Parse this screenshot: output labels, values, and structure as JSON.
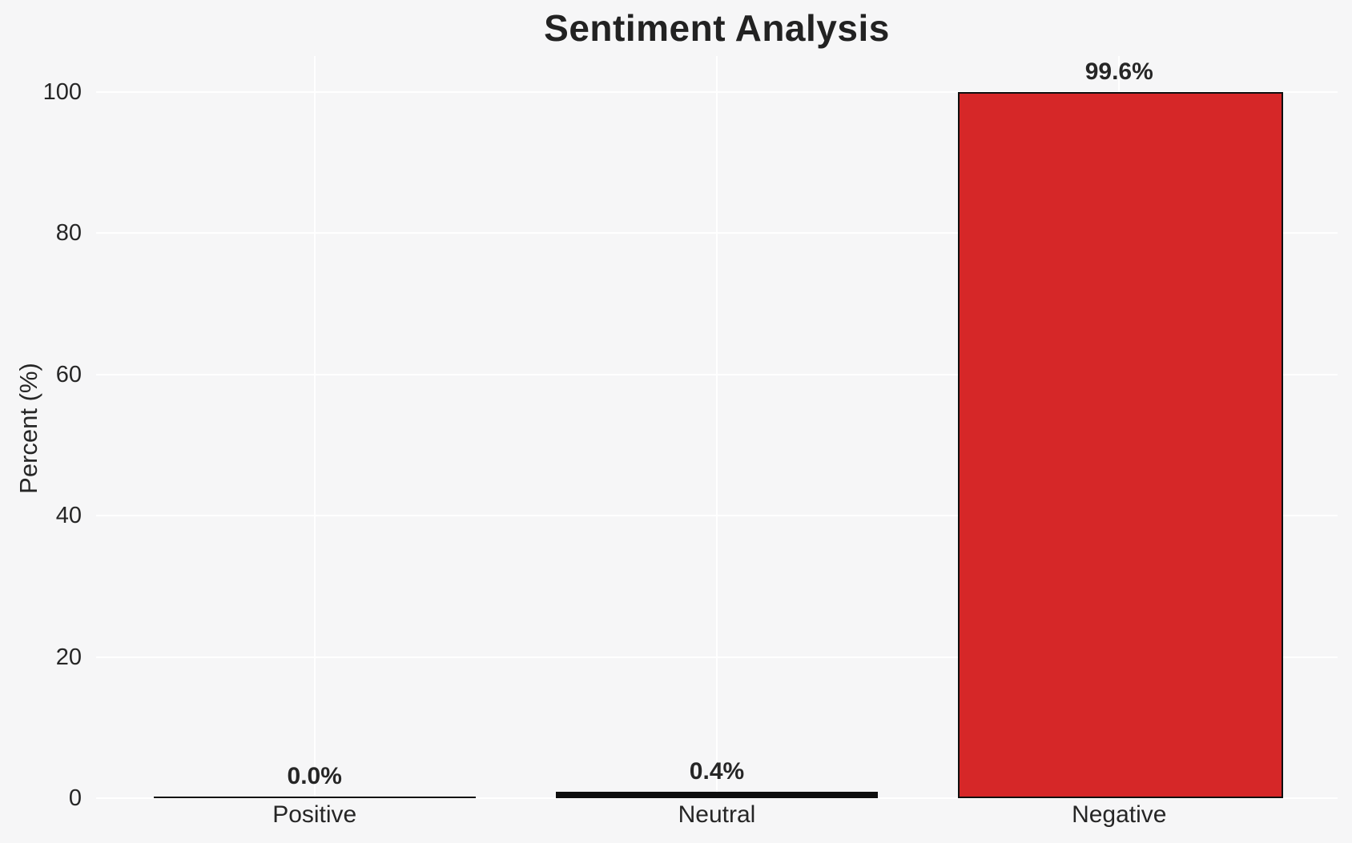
{
  "figure": {
    "background_color": "#f6f6f7",
    "grid_color": "#ffffff",
    "text_color": "#262626",
    "bar_edge_color": "#0f0f0f"
  },
  "chart_data": {
    "type": "bar",
    "title": "Sentiment Analysis",
    "xlabel": "",
    "ylabel": "Percent (%)",
    "categories": [
      "Positive",
      "Neutral",
      "Negative"
    ],
    "values": [
      0.0,
      0.4,
      99.6
    ],
    "value_labels": [
      "0.0%",
      "0.4%",
      "99.6%"
    ],
    "bar_colors": [
      null,
      null,
      "#d62728"
    ],
    "yticks": [
      0,
      20,
      40,
      60,
      80,
      100
    ],
    "ylim": [
      0,
      105
    ],
    "grid": true,
    "grid_orientation": "horizontal-and-vertical",
    "legend": false
  }
}
